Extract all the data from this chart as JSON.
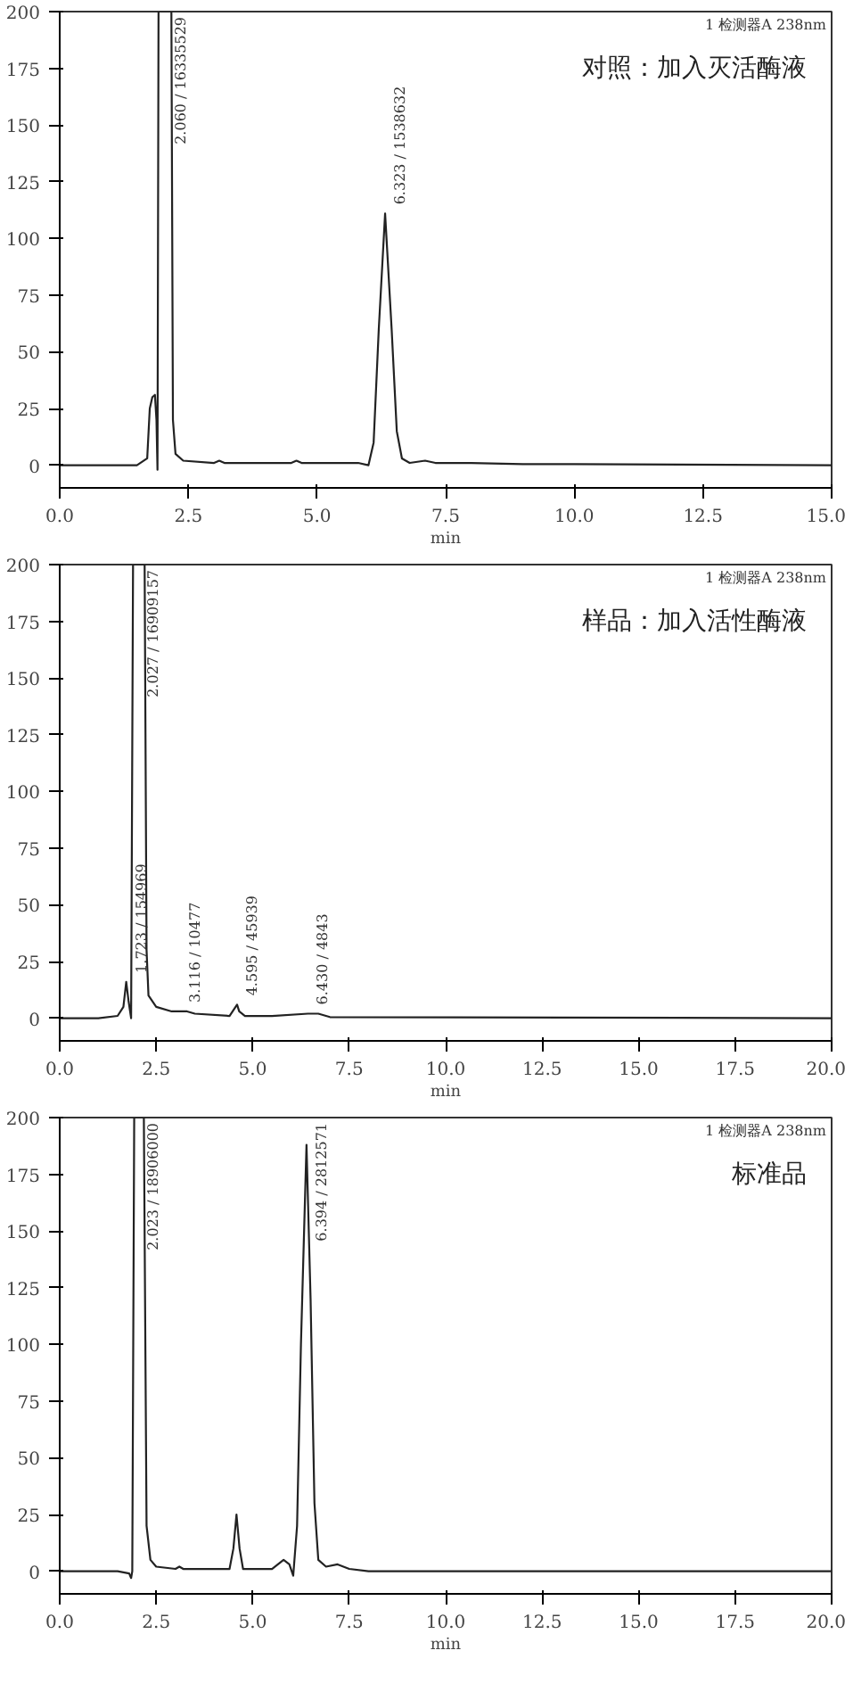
{
  "chart_data": [
    {
      "type": "line",
      "title": "对照：加入灭活酶液",
      "xlabel": "min",
      "annotations": [
        "1 检测器A 238nm",
        {
          "text": "2.060 / 16335529",
          "x": 2.06,
          "y": 200
        },
        {
          "text": "6.323 / 1538632",
          "x": 6.323,
          "y": 111
        }
      ],
      "xlim": [
        0,
        15
      ],
      "xticks": [
        {
          "value": 0,
          "label": "0.0"
        },
        2.5,
        {
          "value": 5,
          "label": "5.0"
        },
        7.5,
        {
          "value": 10,
          "label": "10.0"
        },
        12.5,
        {
          "value": 15,
          "label": "15.0"
        }
      ],
      "ylim": [
        -10,
        200
      ],
      "yticks": [
        0,
        25,
        50,
        75,
        100,
        125,
        150,
        175,
        200
      ],
      "grid": false,
      "series": [
        {
          "color": "#222222",
          "x": [
            0,
            1.5,
            1.7,
            1.75,
            1.8,
            1.85,
            1.88,
            1.9,
            1.92,
            2.17,
            2.2,
            2.25,
            2.4,
            3.0,
            3.1,
            3.2,
            4.5,
            4.6,
            4.7,
            5.8,
            6.0,
            6.1,
            6.2,
            6.323,
            6.45,
            6.55,
            6.65,
            6.8,
            7.1,
            7.3,
            8.0,
            9.0,
            10.0,
            15.0
          ],
          "values": [
            0,
            0,
            3,
            25,
            30,
            31,
            20,
            -2,
            200,
            200,
            20,
            5,
            2,
            1,
            2,
            1,
            1,
            2,
            1,
            1,
            0,
            10,
            60,
            111,
            60,
            15,
            3,
            1,
            2,
            1,
            1,
            0.5,
            0.5,
            0
          ]
        }
      ]
    },
    {
      "type": "line",
      "title": "样品：加入活性酶液",
      "xlabel": "min",
      "annotations": [
        "1 检测器A 238nm",
        {
          "text": "1.723 / 154969",
          "x": 1.723,
          "y": 16
        },
        {
          "text": "2.027 / 16909157",
          "x": 2.027,
          "y": 200
        },
        {
          "text": "3.116 / 10477",
          "x": 3.116,
          "y": 3
        },
        {
          "text": "4.595 / 45939",
          "x": 4.595,
          "y": 6
        },
        {
          "text": "6.430 / 4843",
          "x": 6.43,
          "y": 2
        }
      ],
      "xlim": [
        0,
        20
      ],
      "xticks": [
        {
          "value": 0,
          "label": "0.0"
        },
        2.5,
        {
          "value": 5,
          "label": "5.0"
        },
        7.5,
        {
          "value": 10,
          "label": "10.0"
        },
        12.5,
        {
          "value": 15,
          "label": "15.0"
        },
        17.5,
        {
          "value": 20,
          "label": "20.0"
        }
      ],
      "ylim": [
        -10,
        200
      ],
      "yticks": [
        0,
        25,
        50,
        75,
        100,
        125,
        150,
        175,
        200
      ],
      "grid": false,
      "series": [
        {
          "color": "#222222",
          "x": [
            0,
            1.0,
            1.5,
            1.65,
            1.723,
            1.78,
            1.85,
            1.9,
            2.2,
            2.25,
            2.3,
            2.5,
            2.9,
            3.116,
            3.3,
            3.5,
            4.4,
            4.595,
            4.65,
            4.8,
            5.5,
            6.43,
            6.7,
            7.0,
            20.0
          ],
          "values": [
            0,
            0,
            1,
            5,
            16,
            8,
            0,
            200,
            200,
            30,
            10,
            5,
            3,
            3,
            3,
            2,
            1,
            6,
            3,
            1,
            1,
            2,
            2,
            0.5,
            0
          ]
        }
      ]
    },
    {
      "type": "line",
      "title": "标准品",
      "xlabel": "min",
      "annotations": [
        "1 检测器A 238nm",
        {
          "text": "2.023 / 18906000",
          "x": 2.023,
          "y": 200
        },
        {
          "text": "6.394 / 2812571",
          "x": 6.394,
          "y": 188
        }
      ],
      "xlim": [
        0,
        20
      ],
      "xticks": [
        {
          "value": 0,
          "label": "0.0"
        },
        2.5,
        {
          "value": 5,
          "label": "5.0"
        },
        7.5,
        {
          "value": 10,
          "label": "10.0"
        },
        12.5,
        {
          "value": 15,
          "label": "15.0"
        },
        17.5,
        {
          "value": 20,
          "label": "20.0"
        }
      ],
      "ylim": [
        -10,
        200
      ],
      "yticks": [
        0,
        25,
        50,
        75,
        100,
        125,
        150,
        175,
        200
      ],
      "grid": false,
      "series": [
        {
          "color": "#222222",
          "x": [
            0,
            1.5,
            1.8,
            1.85,
            1.88,
            1.93,
            2.18,
            2.25,
            2.35,
            2.5,
            3.0,
            3.1,
            3.2,
            4.4,
            4.5,
            4.58,
            4.66,
            4.75,
            5.5,
            5.8,
            5.95,
            6.05,
            6.15,
            6.25,
            6.394,
            6.5,
            6.6,
            6.7,
            6.9,
            7.2,
            7.5,
            8.0,
            20.0
          ],
          "values": [
            0,
            0,
            -1,
            -3,
            0,
            200,
            200,
            20,
            5,
            2,
            1,
            2,
            1,
            1,
            10,
            25,
            10,
            1,
            1,
            5,
            3,
            -2,
            20,
            100,
            188,
            120,
            30,
            5,
            2,
            3,
            1,
            0,
            0
          ]
        }
      ]
    }
  ]
}
